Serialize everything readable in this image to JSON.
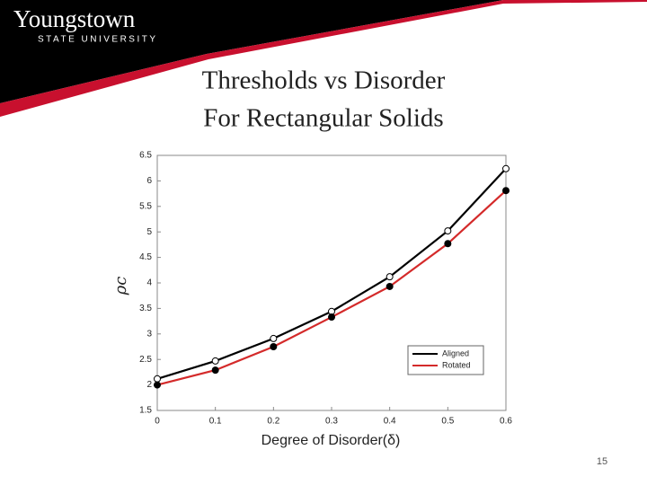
{
  "header": {
    "logo_name": "Youngstown",
    "logo_sub": "STATE UNIVERSITY"
  },
  "slide_title": [
    "Thresholds vs Disorder",
    "For Rectangular Solids"
  ],
  "slide_number": "15",
  "chart_data": {
    "type": "line",
    "x_label": "Degree of Disorder(δ)",
    "y_label": "ρc",
    "x": [
      0,
      0.1,
      0.2,
      0.3,
      0.4,
      0.5,
      0.6
    ],
    "series": [
      {
        "name": "Aligned",
        "color": "#000000",
        "marker_face": "#ffffff",
        "values": [
          2.12,
          2.47,
          2.91,
          3.44,
          4.12,
          5.02,
          6.24
        ]
      },
      {
        "name": "Rotated",
        "color": "#d42a2a",
        "marker_face": "#000000",
        "values": [
          2.0,
          2.29,
          2.75,
          3.33,
          3.93,
          4.77,
          5.81
        ]
      }
    ],
    "xlim": [
      0,
      0.6
    ],
    "xticks": [
      0,
      0.1,
      0.2,
      0.3,
      0.4,
      0.5,
      0.6
    ],
    "ylim": [
      1.5,
      6.5
    ],
    "yticks": [
      1.5,
      2,
      2.5,
      3,
      3.5,
      4,
      4.5,
      5,
      5.5,
      6,
      6.5
    ],
    "grid": false,
    "legend": "lower right"
  }
}
